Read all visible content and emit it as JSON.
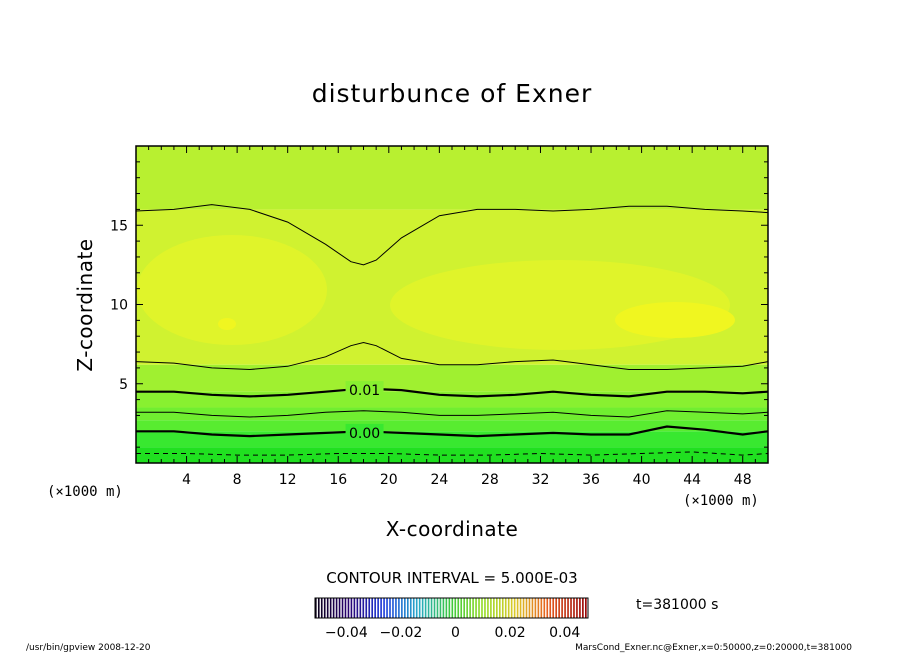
{
  "chart_data": {
    "type": "contour",
    "title": "disturbunce of Exner",
    "xlabel": "X-coordinate",
    "ylabel": "Z-coordinate",
    "x_unit": "(×1000 m)",
    "y_unit": "(×1000 m)",
    "xlim": [
      0,
      50
    ],
    "ylim": [
      0,
      20
    ],
    "x_ticks": [
      4,
      8,
      12,
      16,
      20,
      24,
      28,
      32,
      36,
      40,
      44,
      48
    ],
    "y_ticks": [
      5,
      10,
      15
    ],
    "contour_interval_text": "CONTOUR INTERVAL = 5.000E-03",
    "time_text": "t=381000 s",
    "colorbar_ticks": [
      "−0.04",
      "−0.02",
      "0",
      "0.02",
      "0.04"
    ],
    "colorbar_range": [
      -0.05,
      0.05
    ],
    "contour_labels": [
      {
        "text": "0.01",
        "x": 16.5,
        "z": 4.6
      },
      {
        "text": "0.00",
        "x": 16.5,
        "z": 1.9
      }
    ],
    "contours": [
      {
        "level": 0.025,
        "bold": false,
        "dashed": false,
        "points": [
          [
            0,
            15.9
          ],
          [
            3,
            16.0
          ],
          [
            6,
            16.3
          ],
          [
            9,
            16.0
          ],
          [
            12,
            15.2
          ],
          [
            15,
            13.8
          ],
          [
            17,
            12.7
          ],
          [
            18,
            12.5
          ],
          [
            19,
            12.8
          ],
          [
            21,
            14.2
          ],
          [
            24,
            15.6
          ],
          [
            27,
            16.0
          ],
          [
            30,
            16.0
          ],
          [
            33,
            15.9
          ],
          [
            36,
            16.0
          ],
          [
            39,
            16.2
          ],
          [
            42,
            16.2
          ],
          [
            45,
            16.0
          ],
          [
            48,
            15.9
          ],
          [
            50,
            15.8
          ]
        ]
      },
      {
        "level": 0.015,
        "bold": false,
        "dashed": false,
        "points": [
          [
            0,
            6.4
          ],
          [
            3,
            6.3
          ],
          [
            6,
            6.0
          ],
          [
            9,
            5.9
          ],
          [
            12,
            6.1
          ],
          [
            15,
            6.7
          ],
          [
            17,
            7.4
          ],
          [
            18,
            7.6
          ],
          [
            19,
            7.4
          ],
          [
            21,
            6.6
          ],
          [
            24,
            6.2
          ],
          [
            27,
            6.2
          ],
          [
            30,
            6.4
          ],
          [
            33,
            6.5
          ],
          [
            36,
            6.2
          ],
          [
            39,
            5.9
          ],
          [
            42,
            5.9
          ],
          [
            45,
            6.0
          ],
          [
            48,
            6.1
          ],
          [
            50,
            6.4
          ]
        ]
      },
      {
        "level": 0.01,
        "bold": true,
        "dashed": false,
        "points": [
          [
            0,
            4.5
          ],
          [
            3,
            4.5
          ],
          [
            6,
            4.3
          ],
          [
            9,
            4.2
          ],
          [
            12,
            4.3
          ],
          [
            15,
            4.5
          ],
          [
            18,
            4.7
          ],
          [
            21,
            4.6
          ],
          [
            24,
            4.3
          ],
          [
            27,
            4.2
          ],
          [
            30,
            4.3
          ],
          [
            33,
            4.5
          ],
          [
            36,
            4.3
          ],
          [
            39,
            4.2
          ],
          [
            42,
            4.5
          ],
          [
            45,
            4.5
          ],
          [
            48,
            4.4
          ],
          [
            50,
            4.5
          ]
        ]
      },
      {
        "level": 0.005,
        "bold": false,
        "dashed": false,
        "points": [
          [
            0,
            3.2
          ],
          [
            3,
            3.2
          ],
          [
            6,
            3.0
          ],
          [
            9,
            2.9
          ],
          [
            12,
            3.0
          ],
          [
            15,
            3.2
          ],
          [
            18,
            3.3
          ],
          [
            21,
            3.2
          ],
          [
            24,
            3.0
          ],
          [
            27,
            3.0
          ],
          [
            30,
            3.1
          ],
          [
            33,
            3.2
          ],
          [
            36,
            3.0
          ],
          [
            39,
            2.9
          ],
          [
            42,
            3.3
          ],
          [
            45,
            3.2
          ],
          [
            48,
            3.1
          ],
          [
            50,
            3.2
          ]
        ]
      },
      {
        "level": 0.0,
        "bold": true,
        "dashed": false,
        "points": [
          [
            0,
            2.0
          ],
          [
            3,
            2.0
          ],
          [
            6,
            1.8
          ],
          [
            9,
            1.7
          ],
          [
            12,
            1.8
          ],
          [
            15,
            1.9
          ],
          [
            18,
            2.0
          ],
          [
            21,
            1.9
          ],
          [
            24,
            1.8
          ],
          [
            27,
            1.7
          ],
          [
            30,
            1.8
          ],
          [
            33,
            1.9
          ],
          [
            36,
            1.8
          ],
          [
            39,
            1.8
          ],
          [
            42,
            2.3
          ],
          [
            45,
            2.1
          ],
          [
            48,
            1.8
          ],
          [
            50,
            2.0
          ]
        ]
      },
      {
        "level": -0.005,
        "bold": false,
        "dashed": true,
        "points": [
          [
            0,
            0.6
          ],
          [
            4,
            0.6
          ],
          [
            8,
            0.5
          ],
          [
            12,
            0.5
          ],
          [
            16,
            0.6
          ],
          [
            20,
            0.6
          ],
          [
            24,
            0.5
          ],
          [
            28,
            0.5
          ],
          [
            32,
            0.6
          ],
          [
            36,
            0.5
          ],
          [
            40,
            0.6
          ],
          [
            44,
            0.7
          ],
          [
            48,
            0.5
          ],
          [
            50,
            0.6
          ]
        ]
      }
    ],
    "bands": [
      {
        "from_z": 0,
        "to_z": 1.0,
        "color": "#20e020"
      },
      {
        "from_z": 1.0,
        "to_z": 2.0,
        "color": "#38e830"
      },
      {
        "from_z": 2.0,
        "to_z": 2.7,
        "color": "#58ec30"
      },
      {
        "from_z": 2.7,
        "to_z": 3.5,
        "color": "#70ee30"
      },
      {
        "from_z": 3.5,
        "to_z": 4.5,
        "color": "#88f030"
      },
      {
        "from_z": 4.5,
        "to_z": 6.2,
        "color": "#a0f030"
      },
      {
        "from_z": 6.2,
        "to_z": 16.0,
        "color": "#d0f230"
      },
      {
        "from_z": 16.0,
        "to_z": 20.0,
        "color": "#b8f030"
      }
    ]
  },
  "footer": {
    "left": "/usr/bin/gpview   2008-12-20",
    "right": "MarsCond_Exner.nc@Exner,x=0:50000,z=0:20000,t=381000"
  }
}
